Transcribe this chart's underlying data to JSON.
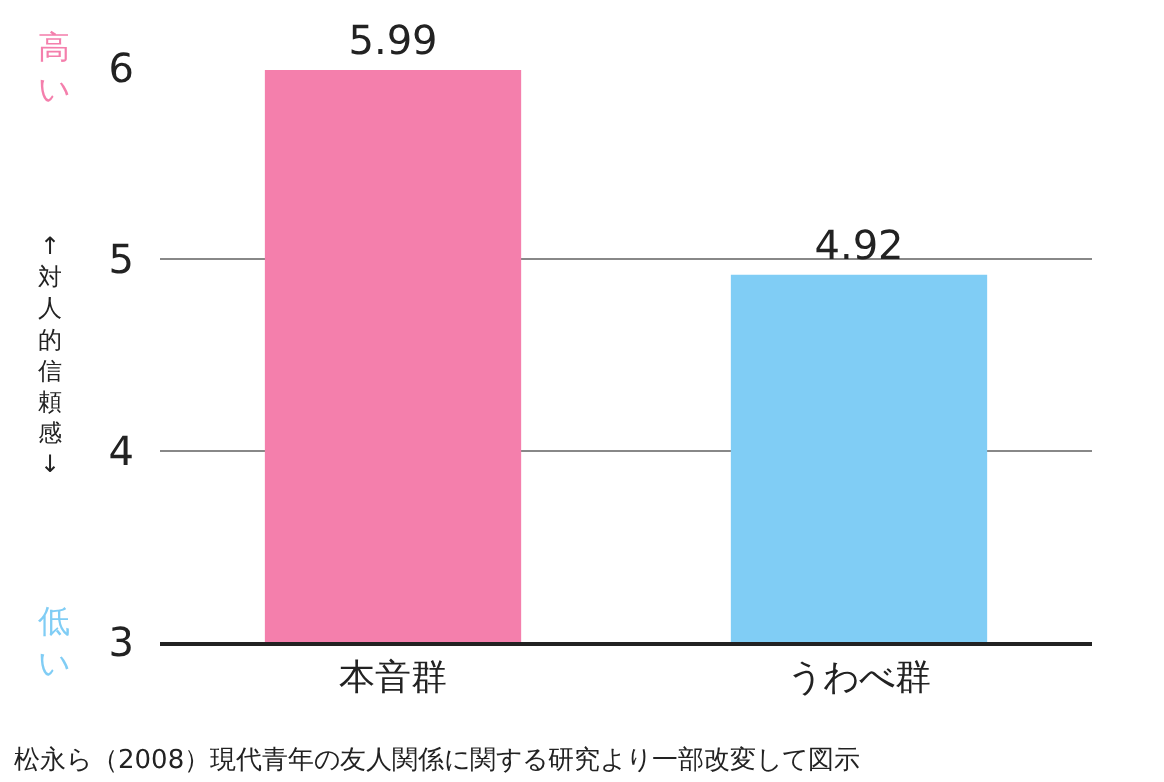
{
  "chart_data": {
    "type": "bar",
    "categories": [
      "本音群",
      "うわべ群"
    ],
    "values": [
      5.99,
      4.92
    ],
    "colors": [
      "#f47fac",
      "#80cdf5"
    ],
    "ylabel": "↑対人的信頼感↓",
    "ylim": [
      3,
      6
    ],
    "yticks": [
      3,
      4,
      5,
      6
    ],
    "grid": "y",
    "data_labels": true,
    "annotations": [
      "高い",
      "低い",
      "松永ら（2008）現代青年の友人関係に関する研究より一部改変して図示"
    ]
  }
}
